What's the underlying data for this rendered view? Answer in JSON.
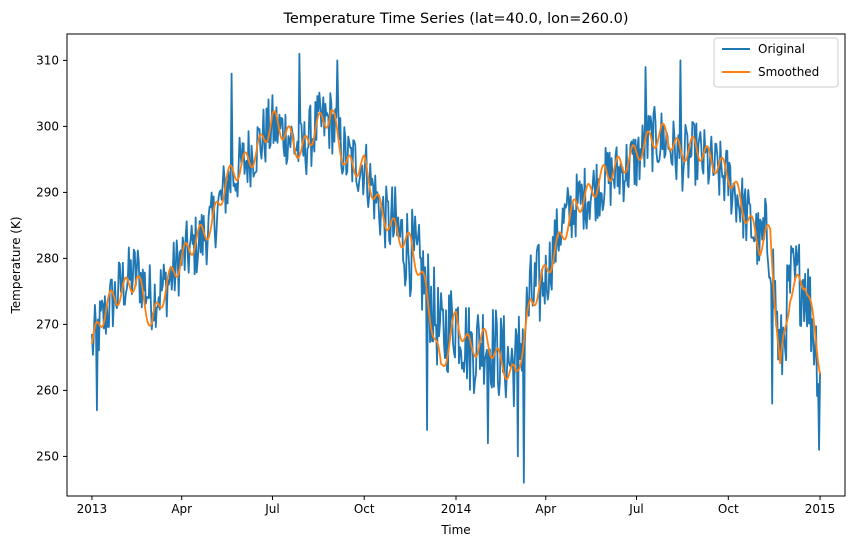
{
  "chart_data": {
    "type": "line",
    "title": "Temperature Time Series (lat=40.0, lon=260.0)",
    "xlabel": "Time",
    "ylabel": "Temperature (K)",
    "xlim": [
      -25,
      755
    ],
    "ylim": [
      244,
      314
    ],
    "x_unit": "days since 2013-01-01",
    "x_ticks": [
      {
        "value": 0,
        "label": "2013"
      },
      {
        "value": 90,
        "label": "Apr"
      },
      {
        "value": 181,
        "label": "Jul"
      },
      {
        "value": 273,
        "label": "Oct"
      },
      {
        "value": 365,
        "label": "2014"
      },
      {
        "value": 455,
        "label": "Apr"
      },
      {
        "value": 546,
        "label": "Jul"
      },
      {
        "value": 638,
        "label": "Oct"
      },
      {
        "value": 730,
        "label": "2015"
      }
    ],
    "y_ticks": [
      250,
      260,
      270,
      280,
      290,
      300,
      310
    ],
    "legend": {
      "position": "top-right",
      "entries": [
        "Original",
        "Smoothed"
      ]
    },
    "series": [
      {
        "name": "Original",
        "color": "#1f77b4",
        "description": "daily values, noisy",
        "x": [
          0,
          15,
          30,
          45,
          60,
          75,
          90,
          105,
          120,
          135,
          150,
          165,
          181,
          195,
          210,
          225,
          240,
          255,
          273,
          290,
          305,
          320,
          335,
          350,
          365,
          380,
          395,
          410,
          425,
          440,
          455,
          470,
          485,
          500,
          515,
          530,
          546,
          560,
          575,
          590,
          605,
          620,
          638,
          655,
          670,
          680,
          690,
          700,
          715,
          730
        ],
        "values": [
          267,
          272,
          276,
          278,
          274,
          276,
          280,
          282,
          285,
          291,
          294,
          297,
          300,
          299,
          296,
          300,
          301,
          295,
          294,
          287,
          284,
          281,
          276,
          268,
          271,
          266,
          268,
          265,
          264,
          274,
          277,
          285,
          288,
          290,
          292,
          293,
          295,
          298,
          298,
          295,
          296,
          294,
          292,
          287,
          282,
          283,
          264,
          276,
          277,
          263
        ],
        "extremes": [
          {
            "x": 5,
            "value": 257
          },
          {
            "x": 140,
            "value": 308
          },
          {
            "x": 208,
            "value": 311
          },
          {
            "x": 246,
            "value": 310
          },
          {
            "x": 336,
            "value": 254
          },
          {
            "x": 397,
            "value": 252
          },
          {
            "x": 427,
            "value": 250
          },
          {
            "x": 433,
            "value": 246
          },
          {
            "x": 555,
            "value": 309
          },
          {
            "x": 590,
            "value": 310
          },
          {
            "x": 682,
            "value": 258
          },
          {
            "x": 729,
            "value": 251
          }
        ]
      },
      {
        "name": "Smoothed",
        "color": "#ff7f0e",
        "x": [
          0,
          15,
          30,
          45,
          60,
          75,
          90,
          105,
          120,
          135,
          150,
          165,
          181,
          195,
          210,
          225,
          240,
          255,
          273,
          290,
          305,
          320,
          335,
          350,
          365,
          380,
          395,
          410,
          425,
          440,
          455,
          470,
          485,
          500,
          515,
          530,
          546,
          560,
          575,
          590,
          605,
          620,
          638,
          655,
          670,
          680,
          690,
          700,
          715,
          730
        ],
        "values": [
          267,
          273,
          275,
          277,
          270,
          276,
          280,
          283,
          285,
          292,
          294,
          296,
          301,
          299,
          296,
          300,
          302,
          294,
          294,
          287,
          284,
          282,
          275,
          263,
          271,
          266,
          268,
          264,
          262,
          273,
          278,
          283,
          288,
          290,
          293,
          294,
          296,
          298,
          299,
          296,
          297,
          295,
          293,
          287,
          282,
          284,
          263,
          275,
          277,
          264
        ]
      }
    ]
  }
}
